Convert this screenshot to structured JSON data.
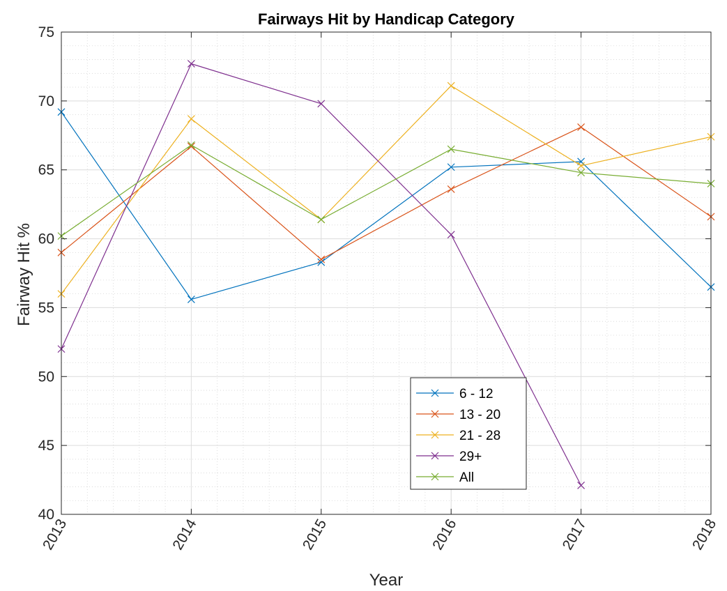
{
  "chart_data": {
    "type": "line",
    "title": "Fairways Hit by Handicap Category",
    "xlabel": "Year",
    "ylabel": "Fairway Hit %",
    "x": [
      "2013",
      "2014",
      "2015",
      "2016",
      "2017",
      "2018"
    ],
    "ylim": [
      40,
      75
    ],
    "yticks": [
      "40",
      "45",
      "50",
      "55",
      "60",
      "65",
      "70",
      "75"
    ],
    "grid": true,
    "minor_grid": true,
    "legend_position": "lower-center",
    "marker": "x",
    "series": [
      {
        "name": "6 - 12",
        "color": "#0072BD",
        "values": [
          69.2,
          55.6,
          58.3,
          65.2,
          65.6,
          56.5
        ]
      },
      {
        "name": "13 - 20",
        "color": "#D95319",
        "values": [
          59.0,
          66.7,
          58.5,
          63.6,
          68.1,
          61.6
        ]
      },
      {
        "name": "21 - 28",
        "color": "#EDB120",
        "values": [
          56.0,
          68.7,
          61.4,
          71.1,
          65.3,
          67.4
        ]
      },
      {
        "name": "29+",
        "color": "#7E2F8E",
        "values": [
          52.0,
          72.7,
          69.8,
          60.3,
          42.1,
          null
        ]
      },
      {
        "name": "All",
        "color": "#77AC30",
        "values": [
          60.2,
          66.8,
          61.4,
          66.5,
          64.8,
          64.0
        ]
      }
    ]
  }
}
